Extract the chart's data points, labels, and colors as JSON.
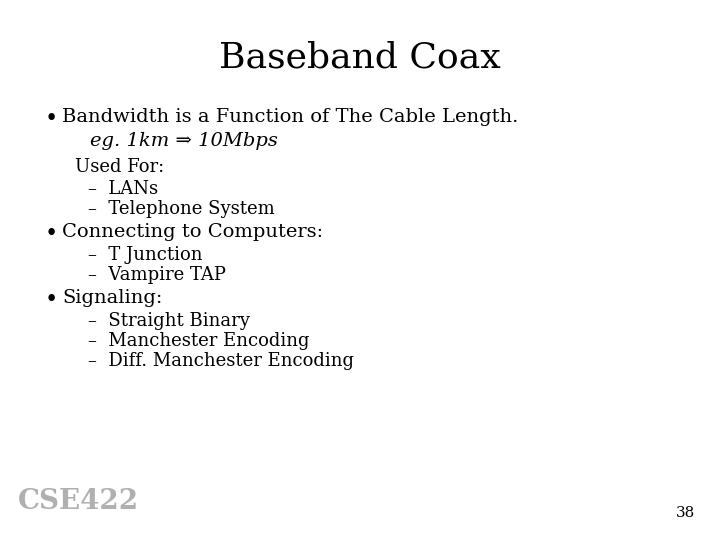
{
  "title": "Baseband Coax",
  "title_fontsize": 26,
  "title_font": "serif",
  "background_color": "#ffffff",
  "text_color": "#000000",
  "bullet1_text": "Bandwidth is a Function of The Cable Length.",
  "bullet1_italic": "eg. 1km ⇒ 10Mbps",
  "sub_label": "Used For:",
  "sub1": "LANs",
  "sub2": "Telephone System",
  "bullet2_text": "Connecting to Computers:",
  "sub3": "T Junction",
  "sub4": "Vampire TAP",
  "bullet3_text": "Signaling:",
  "sub5": "Straight Binary",
  "sub6": "Manchester Encoding",
  "sub7": "Diff. Manchester Encoding",
  "watermark": "CSE422",
  "page_number": "38",
  "body_fontsize": 14,
  "sub_fontsize": 13,
  "bullet_dot_fontsize": 16
}
